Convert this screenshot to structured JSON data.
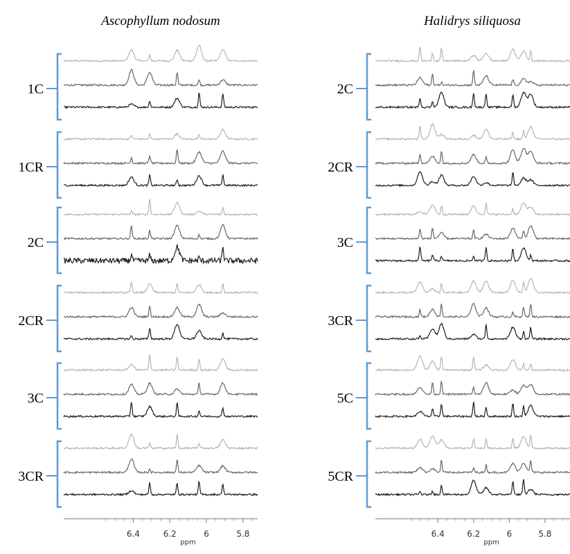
{
  "chart_data": [
    {
      "type": "spectra",
      "title": "Ascophyllum nodosum",
      "xlabel": "ppm",
      "xlim": [
        6.78,
        5.72
      ],
      "xticks": [
        6.4,
        6.2,
        6.0,
        5.8
      ],
      "peaks": [
        6.41,
        6.31,
        6.16,
        6.04,
        5.91
      ],
      "trace_colors": [
        "#b5b5b5",
        "#666666",
        "#1c1c1c"
      ],
      "bracket_color": "#5b9bd5",
      "groups": [
        {
          "label": "1C"
        },
        {
          "label": "1CR"
        },
        {
          "label": "2C"
        },
        {
          "label": "2CR"
        },
        {
          "label": "3C"
        },
        {
          "label": "3CR"
        }
      ]
    },
    {
      "type": "spectra",
      "title": "Halidrys siliquosa",
      "xlabel": "ppm",
      "xlim": [
        6.75,
        5.66
      ],
      "xticks": [
        6.4,
        6.2,
        6.0,
        5.8
      ],
      "peaks": [
        6.5,
        6.43,
        6.38,
        6.2,
        6.13,
        5.98,
        5.92,
        5.88
      ],
      "trace_colors": [
        "#b5b5b5",
        "#666666",
        "#1c1c1c"
      ],
      "bracket_color": "#5b9bd5",
      "groups": [
        {
          "label": "2C"
        },
        {
          "label": "2CR"
        },
        {
          "label": "3C"
        },
        {
          "label": "3CR"
        },
        {
          "label": "5C"
        },
        {
          "label": "5CR"
        }
      ]
    }
  ]
}
